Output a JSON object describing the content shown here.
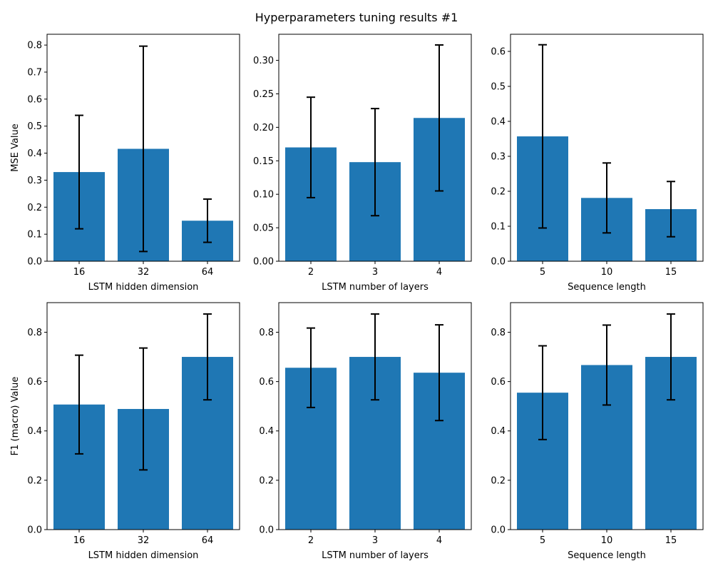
{
  "title": "Hyperparameters tuning results #1",
  "colors": {
    "bar": "#1f77b4",
    "errorbar": "#000000",
    "axis": "#000000"
  },
  "chart_data": [
    {
      "type": "bar",
      "categories": [
        "16",
        "32",
        "64"
      ],
      "values": [
        0.33,
        0.416,
        0.15
      ],
      "error": [
        0.21,
        0.38,
        0.08
      ],
      "xlabel": "LSTM hidden dimension",
      "ylabel": "MSE Value",
      "ylim": [
        0,
        0.84
      ],
      "yticks": [
        0.0,
        0.1,
        0.2,
        0.3,
        0.4,
        0.5,
        0.6,
        0.7,
        0.8
      ],
      "ytick_labels": [
        "0.0",
        "0.1",
        "0.2",
        "0.3",
        "0.4",
        "0.5",
        "0.6",
        "0.7",
        "0.8"
      ]
    },
    {
      "type": "bar",
      "categories": [
        "2",
        "3",
        "4"
      ],
      "values": [
        0.17,
        0.148,
        0.214
      ],
      "error": [
        0.075,
        0.08,
        0.109
      ],
      "xlabel": "LSTM number of layers",
      "ylabel": "",
      "ylim": [
        0,
        0.339
      ],
      "yticks": [
        0.0,
        0.05,
        0.1,
        0.15,
        0.2,
        0.25,
        0.3
      ],
      "ytick_labels": [
        "0.00",
        "0.05",
        "0.10",
        "0.15",
        "0.20",
        "0.25",
        "0.30"
      ]
    },
    {
      "type": "bar",
      "categories": [
        "5",
        "10",
        "15"
      ],
      "values": [
        0.357,
        0.181,
        0.149
      ],
      "error": [
        0.262,
        0.1,
        0.079
      ],
      "xlabel": "Sequence length",
      "ylabel": "",
      "ylim": [
        0,
        0.649
      ],
      "yticks": [
        0.0,
        0.1,
        0.2,
        0.3,
        0.4,
        0.5,
        0.6
      ],
      "ytick_labels": [
        "0.0",
        "0.1",
        "0.2",
        "0.3",
        "0.4",
        "0.5",
        "0.6"
      ]
    },
    {
      "type": "bar",
      "categories": [
        "16",
        "32",
        "64"
      ],
      "values": [
        0.507,
        0.489,
        0.7
      ],
      "error": [
        0.2,
        0.247,
        0.174
      ],
      "xlabel": "LSTM hidden dimension",
      "ylabel": "F1 (macro) Value",
      "ylim": [
        0,
        0.92
      ],
      "yticks": [
        0.0,
        0.2,
        0.4,
        0.6,
        0.8
      ],
      "ytick_labels": [
        "0.0",
        "0.2",
        "0.4",
        "0.6",
        "0.8"
      ]
    },
    {
      "type": "bar",
      "categories": [
        "2",
        "3",
        "4"
      ],
      "values": [
        0.656,
        0.7,
        0.636
      ],
      "error": [
        0.161,
        0.174,
        0.194
      ],
      "xlabel": "LSTM number of layers",
      "ylabel": "",
      "ylim": [
        0,
        0.92
      ],
      "yticks": [
        0.0,
        0.2,
        0.4,
        0.6,
        0.8
      ],
      "ytick_labels": [
        "0.0",
        "0.2",
        "0.4",
        "0.6",
        "0.8"
      ]
    },
    {
      "type": "bar",
      "categories": [
        "5",
        "10",
        "15"
      ],
      "values": [
        0.555,
        0.667,
        0.7
      ],
      "error": [
        0.19,
        0.162,
        0.174
      ],
      "xlabel": "Sequence length",
      "ylabel": "",
      "ylim": [
        0,
        0.92
      ],
      "yticks": [
        0.0,
        0.2,
        0.4,
        0.6,
        0.8
      ],
      "ytick_labels": [
        "0.0",
        "0.2",
        "0.4",
        "0.6",
        "0.8"
      ]
    }
  ]
}
